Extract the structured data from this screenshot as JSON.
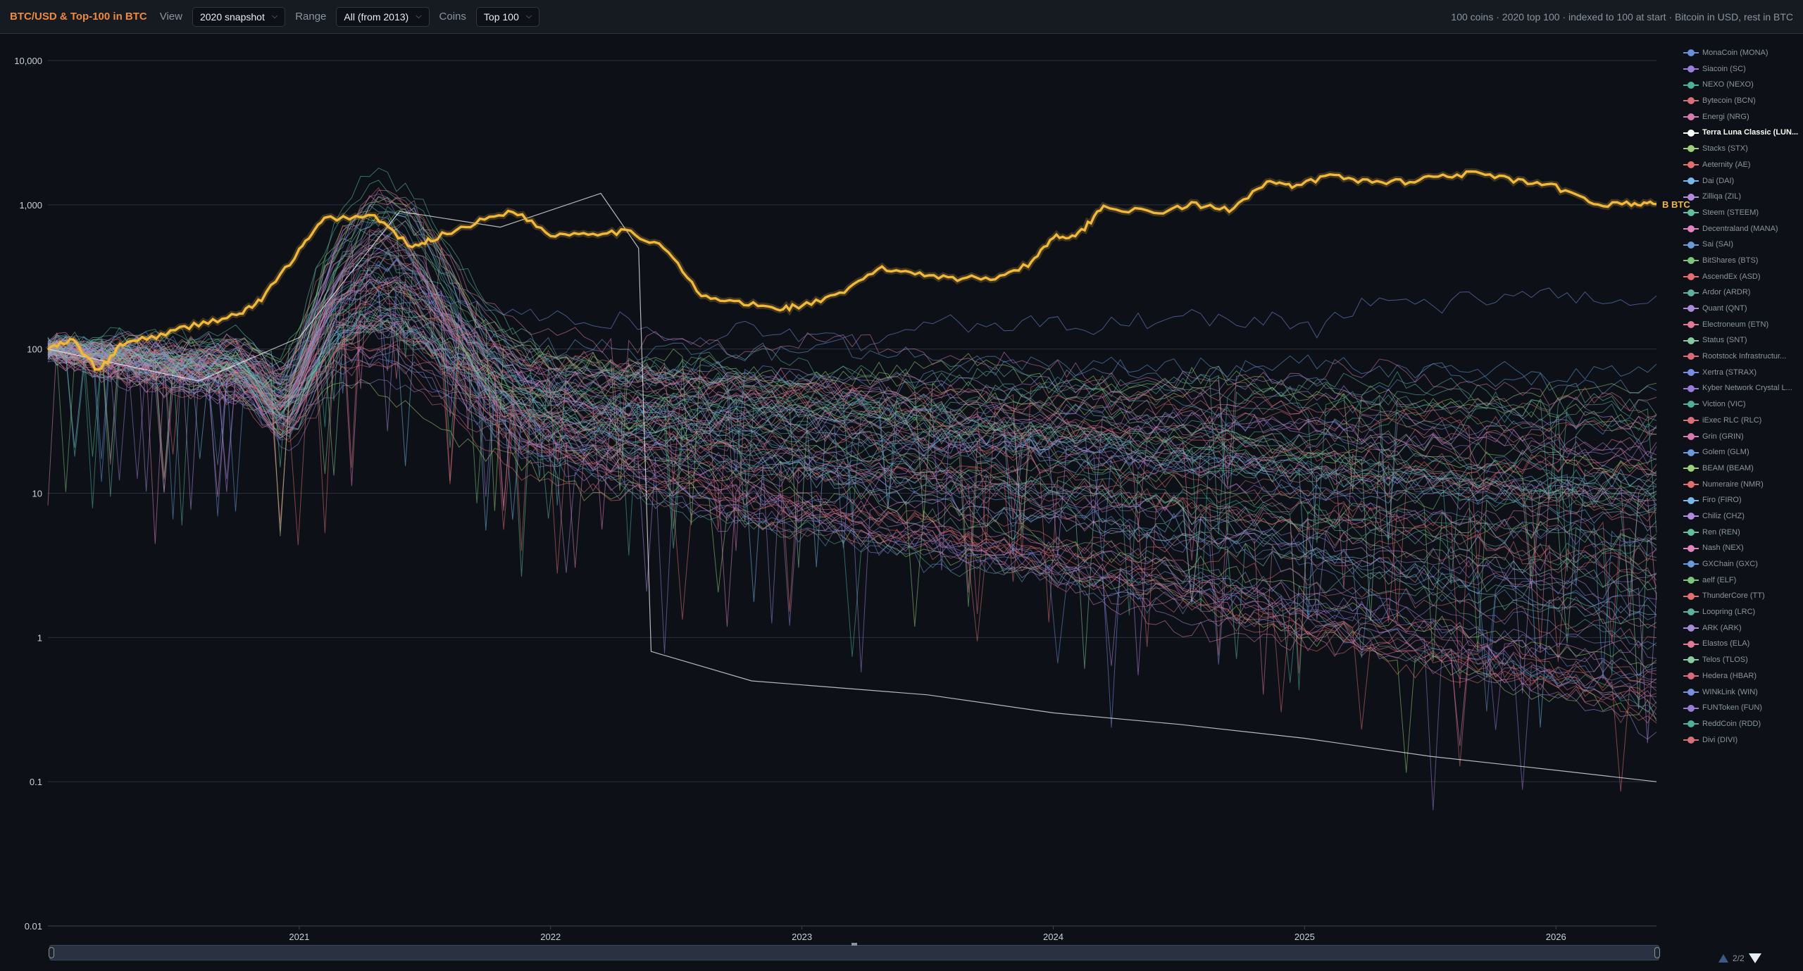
{
  "header": {
    "title": "BTC/USD & Top-100 in BTC",
    "view_label": "View",
    "view_value": "2020 snapshot",
    "range_label": "Range",
    "range_value": "All (from 2013)",
    "coins_label": "Coins",
    "coins_value": "Top 100",
    "info": "100 coins · 2020 top 100 · indexed to 100 at start · Bitcoin in USD, rest in BTC"
  },
  "legend": {
    "items": [
      {
        "label": "MonaCoin (MONA)",
        "color": "#6b8fd6"
      },
      {
        "label": "Siacoin (SC)",
        "color": "#9b7fd6"
      },
      {
        "label": "NEXO (NEXO)",
        "color": "#4fb09a"
      },
      {
        "label": "Bytecoin (BCN)",
        "color": "#d6707a"
      },
      {
        "label": "Energi (NRG)",
        "color": "#d67ab0"
      },
      {
        "label": "Terra Luna Classic (LUN...",
        "color": "#ffffff",
        "active": true
      },
      {
        "label": "Stacks (STX)",
        "color": "#9ccf78"
      },
      {
        "label": "Aeternity (AE)",
        "color": "#e07070"
      },
      {
        "label": "Dai (DAI)",
        "color": "#79b8e8"
      },
      {
        "label": "Zilliqa (ZIL)",
        "color": "#b48ae0"
      },
      {
        "label": "Steem (STEEM)",
        "color": "#5fbf9f"
      },
      {
        "label": "Decentraland (MANA)",
        "color": "#e084c0"
      },
      {
        "label": "Sai (SAI)",
        "color": "#6a9ad8"
      },
      {
        "label": "BitShares (BTS)",
        "color": "#7cc47c"
      },
      {
        "label": "AscendEx (ASD)",
        "color": "#e07070"
      },
      {
        "label": "Ardor (ARDR)",
        "color": "#5fb0a0"
      },
      {
        "label": "Quant (QNT)",
        "color": "#a88ad8"
      },
      {
        "label": "Electroneum (ETN)",
        "color": "#e07a9a"
      },
      {
        "label": "Status (SNT)",
        "color": "#8ac8a0"
      },
      {
        "label": "Rootstock Infrastructur...",
        "color": "#d86a7a"
      },
      {
        "label": "Xertra (STRAX)",
        "color": "#7a8ee0"
      },
      {
        "label": "Kyber Network Crystal L...",
        "color": "#9a7ad8"
      },
      {
        "label": "Viction (VIC)",
        "color": "#4fb09a"
      },
      {
        "label": "iExec RLC (RLC)",
        "color": "#d6707a"
      },
      {
        "label": "Grin (GRIN)",
        "color": "#d67ab0"
      },
      {
        "label": "Golem (GLM)",
        "color": "#6a9ad8"
      },
      {
        "label": "BEAM (BEAM)",
        "color": "#9ccf78"
      },
      {
        "label": "Numeraire (NMR)",
        "color": "#e07070"
      },
      {
        "label": "Firo (FIRO)",
        "color": "#79b8e8"
      },
      {
        "label": "Chiliz (CHZ)",
        "color": "#b48ae0"
      },
      {
        "label": "Ren (REN)",
        "color": "#5fbf9f"
      },
      {
        "label": "Nash (NEX)",
        "color": "#e084c0"
      },
      {
        "label": "GXChain (GXC)",
        "color": "#6a9ad8"
      },
      {
        "label": "aelf (ELF)",
        "color": "#7cc47c"
      },
      {
        "label": "ThunderCore (TT)",
        "color": "#e07070"
      },
      {
        "label": "Loopring (LRC)",
        "color": "#5fb0a0"
      },
      {
        "label": "ARK (ARK)",
        "color": "#a88ad8"
      },
      {
        "label": "Elastos (ELA)",
        "color": "#e07a9a"
      },
      {
        "label": "Telos (TLOS)",
        "color": "#8ac8a0"
      },
      {
        "label": "Hedera (HBAR)",
        "color": "#d86a7a"
      },
      {
        "label": "WINkLink (WIN)",
        "color": "#7a8ee0"
      },
      {
        "label": "FUNToken (FUN)",
        "color": "#9a7ad8"
      },
      {
        "label": "ReddCoin (RDD)",
        "color": "#4fb09a"
      },
      {
        "label": "Divi (DIVI)",
        "color": "#d6707a"
      }
    ],
    "page": "2/2"
  },
  "chart_data": {
    "type": "line",
    "title": "BTC/USD & Top-100 in BTC",
    "yscale": "log",
    "ylim": [
      0.01,
      10000
    ],
    "xlim": [
      2020.0,
      2026.4
    ],
    "yticks": [
      "0.01",
      "0.1",
      "1",
      "10",
      "100",
      "1,000",
      "10,000"
    ],
    "xticks": [
      "2021",
      "2022",
      "2023",
      "2024",
      "2025",
      "2026"
    ],
    "grid": true,
    "legend_position": "right",
    "series": [
      {
        "name": "B BTC",
        "color": "#f2b83a",
        "x": [
          2020.0,
          2020.1,
          2020.2,
          2020.3,
          2020.45,
          2020.6,
          2020.75,
          2020.85,
          2021.0,
          2021.1,
          2021.3,
          2021.45,
          2021.55,
          2021.7,
          2021.85,
          2022.0,
          2022.15,
          2022.3,
          2022.45,
          2022.6,
          2022.75,
          2022.9,
          2023.0,
          2023.15,
          2023.3,
          2023.45,
          2023.6,
          2023.75,
          2023.9,
          2024.0,
          2024.1,
          2024.2,
          2024.4,
          2024.55,
          2024.7,
          2024.85,
          2024.95,
          2025.1,
          2025.25,
          2025.4,
          2025.55,
          2025.7,
          2025.85,
          2026.0,
          2026.15,
          2026.3,
          2026.4
        ],
        "y": [
          100,
          115,
          70,
          110,
          125,
          150,
          170,
          220,
          480,
          800,
          840,
          500,
          600,
          750,
          920,
          620,
          640,
          650,
          520,
          230,
          210,
          190,
          200,
          235,
          360,
          340,
          310,
          310,
          380,
          600,
          620,
          980,
          870,
          1000,
          930,
          1450,
          1320,
          1600,
          1450,
          1450,
          1600,
          1650,
          1450,
          1320,
          1010,
          1020,
          1010
        ]
      },
      {
        "name": "Terra Luna Classic (LUN...",
        "color": "#ffffff",
        "x": [
          2020.0,
          2020.6,
          2021.0,
          2021.4,
          2021.8,
          2022.2,
          2022.35,
          2022.4,
          2022.8,
          2023.5,
          2024.0,
          2024.5,
          2025.0,
          2025.5,
          2026.0,
          2026.4
        ],
        "y": [
          100,
          60,
          120,
          900,
          700,
          1200,
          500,
          0.8,
          0.5,
          0.4,
          0.3,
          0.25,
          0.2,
          0.15,
          0.12,
          0.1
        ]
      }
    ]
  }
}
